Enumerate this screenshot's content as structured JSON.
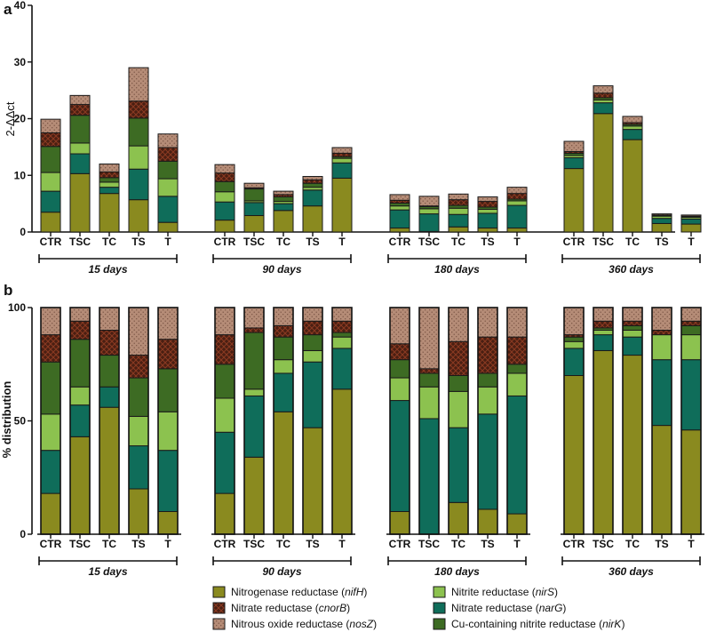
{
  "colors": {
    "nifH": "#8a8a1f",
    "narG": "#0f6d5a",
    "nirS": "#8cc24f",
    "nirK": "#3d6b23",
    "cnorB": "#4a1f12",
    "nosZ": "#b58c77"
  },
  "legend": [
    {
      "key": "nifH",
      "text": "Nitrogenase reductase (",
      "gene": "nifH",
      "close": ")"
    },
    {
      "key": "cnorB",
      "text": "Nitrate reductase (",
      "gene": "cnorB",
      "close": ")"
    },
    {
      "key": "nosZ",
      "text": "Nitrous oxide reductase (",
      "gene": "nosZ",
      "close": ")"
    },
    {
      "key": "nirS",
      "text": "Nitrite reductase (",
      "gene": "nirS",
      "close": ")"
    },
    {
      "key": "narG",
      "text": "Nitrate reductase (",
      "gene": "narG",
      "close": ")"
    },
    {
      "key": "nirK",
      "text": "Cu-containing nitrite reductase (",
      "gene": "nirK",
      "close": ")"
    }
  ],
  "chart_data": [
    {
      "panel": "a",
      "type": "bar",
      "stacked": true,
      "ylabel": "2-ΔΔct",
      "ylim": [
        0,
        40
      ],
      "yticks": [
        0,
        10,
        20,
        30,
        40
      ],
      "stack_order": [
        "nifH",
        "narG",
        "nirS",
        "nirK",
        "cnorB",
        "nosZ"
      ],
      "groups": [
        {
          "label": "15 days",
          "bars": [
            {
              "cat": "CTR",
              "values": [
                3.5,
                3.7,
                3.3,
                4.6,
                2.4,
                2.4
              ]
            },
            {
              "cat": "TSC",
              "values": [
                10.3,
                3.5,
                1.9,
                4.9,
                1.9,
                1.6
              ]
            },
            {
              "cat": "TC",
              "values": [
                6.8,
                1.1,
                0.9,
                0.8,
                1.0,
                1.4
              ]
            },
            {
              "cat": "TS",
              "values": [
                5.7,
                5.4,
                4.1,
                4.9,
                3.0,
                5.9
              ]
            },
            {
              "cat": "T",
              "values": [
                1.7,
                4.6,
                3.1,
                3.1,
                2.4,
                2.4
              ]
            }
          ]
        },
        {
          "label": "90 days",
          "bars": [
            {
              "cat": "CTR",
              "values": [
                2.1,
                3.2,
                1.8,
                1.8,
                1.5,
                1.5
              ]
            },
            {
              "cat": "TSC",
              "values": [
                2.9,
                2.3,
                0.3,
                2.1,
                0.2,
                0.8
              ]
            },
            {
              "cat": "TC",
              "values": [
                3.8,
                1.2,
                0.4,
                0.8,
                0.4,
                0.6
              ]
            },
            {
              "cat": "TS",
              "values": [
                4.6,
                2.8,
                0.5,
                0.7,
                0.6,
                0.6
              ]
            },
            {
              "cat": "T",
              "values": [
                9.5,
                2.7,
                0.8,
                0.3,
                0.6,
                1.0
              ]
            }
          ]
        },
        {
          "label": "180 days",
          "bars": [
            {
              "cat": "CTR",
              "values": [
                0.7,
                3.2,
                0.7,
                0.5,
                0.5,
                1.0
              ]
            },
            {
              "cat": "TSC",
              "values": [
                0.1,
                3.1,
                0.9,
                0.4,
                0.1,
                1.7
              ]
            },
            {
              "cat": "TC",
              "values": [
                0.9,
                2.2,
                1.1,
                0.5,
                1.0,
                1.0
              ]
            },
            {
              "cat": "TS",
              "values": [
                0.7,
                2.6,
                0.7,
                0.4,
                1.0,
                0.8
              ]
            },
            {
              "cat": "T",
              "values": [
                0.7,
                4.0,
                0.8,
                0.3,
                1.0,
                1.1
              ]
            }
          ]
        },
        {
          "label": "360 days",
          "bars": [
            {
              "cat": "CTR",
              "values": [
                11.2,
                1.9,
                0.4,
                0.4,
                0.3,
                1.8
              ]
            },
            {
              "cat": "TSC",
              "values": [
                20.9,
                1.9,
                0.5,
                0.4,
                0.8,
                1.3
              ]
            },
            {
              "cat": "TC",
              "values": [
                16.3,
                1.8,
                0.6,
                0.3,
                0.3,
                1.1
              ]
            },
            {
              "cat": "TS",
              "values": [
                1.5,
                0.9,
                0.4,
                0.1,
                0.1,
                0.2
              ]
            },
            {
              "cat": "T",
              "values": [
                1.4,
                0.9,
                0.3,
                0.1,
                0.1,
                0.2
              ]
            }
          ]
        }
      ]
    },
    {
      "panel": "b",
      "type": "bar",
      "stacked": true,
      "ylabel": "% distribution",
      "ylim": [
        0,
        100
      ],
      "yticks": [
        0,
        50,
        100
      ],
      "stack_order": [
        "nifH",
        "narG",
        "nirS",
        "nirK",
        "cnorB",
        "nosZ"
      ],
      "groups": [
        {
          "label": "15 days",
          "bars": [
            {
              "cat": "CTR",
              "values": [
                18,
                19,
                16,
                23,
                12,
                12
              ]
            },
            {
              "cat": "TSC",
              "values": [
                43,
                14,
                8,
                21,
                8,
                6
              ]
            },
            {
              "cat": "TC",
              "values": [
                56,
                9,
                0,
                14,
                11,
                10
              ]
            },
            {
              "cat": "TS",
              "values": [
                20,
                19,
                13,
                17,
                10,
                21
              ]
            },
            {
              "cat": "T",
              "values": [
                10,
                27,
                17,
                19,
                13,
                14
              ]
            }
          ]
        },
        {
          "label": "90 days",
          "bars": [
            {
              "cat": "CTR",
              "values": [
                18,
                27,
                15,
                15,
                13,
                12
              ]
            },
            {
              "cat": "TSC",
              "values": [
                34,
                27,
                3,
                25,
                2,
                9
              ]
            },
            {
              "cat": "TC",
              "values": [
                54,
                17,
                6,
                10,
                5,
                8
              ]
            },
            {
              "cat": "TS",
              "values": [
                47,
                29,
                5,
                7,
                6,
                6
              ]
            },
            {
              "cat": "T",
              "values": [
                64,
                18,
                5,
                2,
                5,
                6
              ]
            }
          ]
        },
        {
          "label": "180 days",
          "bars": [
            {
              "cat": "CTR",
              "values": [
                10,
                49,
                10,
                8,
                7,
                16
              ]
            },
            {
              "cat": "TSC",
              "values": [
                0,
                51,
                14,
                6,
                2,
                27
              ]
            },
            {
              "cat": "TC",
              "values": [
                14,
                33,
                16,
                7,
                15,
                15
              ]
            },
            {
              "cat": "TS",
              "values": [
                11,
                42,
                12,
                6,
                16,
                13
              ]
            },
            {
              "cat": "T",
              "values": [
                9,
                52,
                10,
                4,
                12,
                13
              ]
            }
          ]
        },
        {
          "label": "360 days",
          "bars": [
            {
              "cat": "CTR",
              "values": [
                70,
                12,
                3,
                2,
                1,
                12
              ]
            },
            {
              "cat": "TSC",
              "values": [
                81,
                7,
                2,
                1,
                3,
                6
              ]
            },
            {
              "cat": "TC",
              "values": [
                79,
                8,
                3,
                2,
                2,
                6
              ]
            },
            {
              "cat": "TS",
              "values": [
                48,
                29,
                11,
                0,
                2,
                10
              ]
            },
            {
              "cat": "T",
              "values": [
                46,
                31,
                11,
                4,
                2,
                6
              ]
            }
          ]
        }
      ]
    }
  ]
}
